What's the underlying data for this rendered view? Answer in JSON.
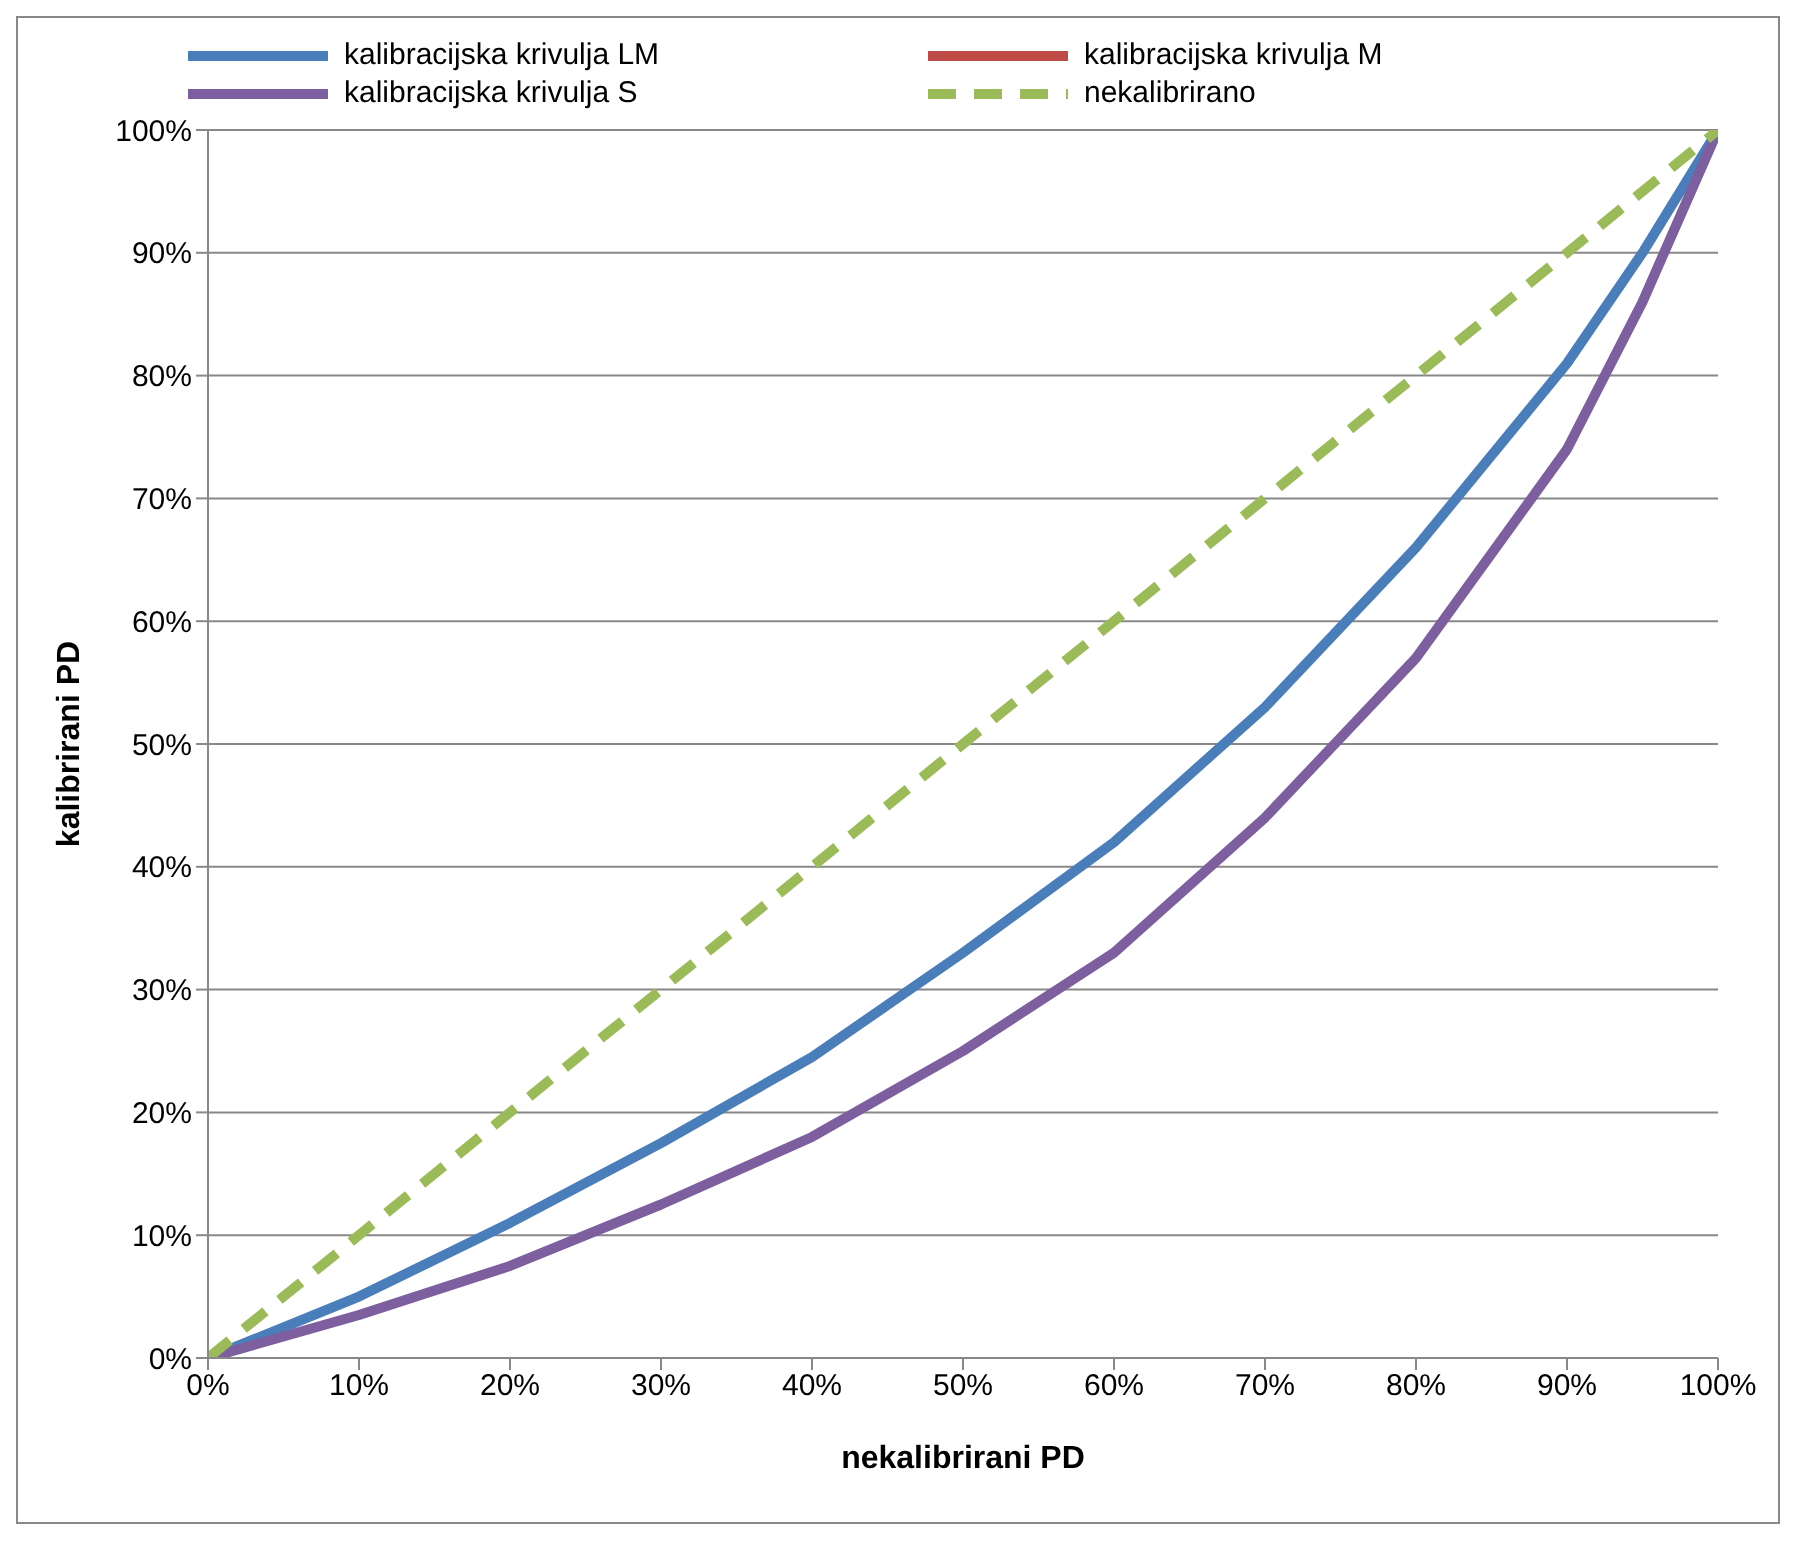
{
  "chart_data": {
    "type": "line",
    "xlabel": "nekalibrirani PD",
    "ylabel": "kalibrirani PD",
    "x": [
      0,
      10,
      20,
      30,
      40,
      50,
      60,
      70,
      80,
      90,
      95,
      100
    ],
    "series": [
      {
        "name": "kalibracijska krivulja LM",
        "color": "#4a7ebb",
        "values": [
          0,
          5,
          11,
          17.5,
          24.5,
          33,
          42,
          53,
          66,
          81,
          90,
          100
        ]
      },
      {
        "name": "kalibracijska krivulja M",
        "color": "#be4b48",
        "values": [
          null,
          null,
          null,
          null,
          null,
          null,
          null,
          null,
          null,
          null,
          null,
          null
        ]
      },
      {
        "name": "kalibracijska krivulja S",
        "color": "#7d5fa0",
        "values": [
          0,
          3.5,
          7.5,
          12.5,
          18,
          25,
          33,
          44,
          57,
          74,
          86,
          100
        ]
      },
      {
        "name": "nekalibrirano",
        "color": "#9bbb59",
        "line_style": "dashed",
        "values": [
          0,
          10,
          20,
          30,
          40,
          50,
          60,
          70,
          80,
          90,
          95,
          100
        ]
      }
    ],
    "xlim": [
      0,
      100
    ],
    "ylim": [
      0,
      100
    ],
    "xticks": [
      {
        "value": 0,
        "label": "0%"
      },
      {
        "value": 10,
        "label": "10%"
      },
      {
        "value": 20,
        "label": "20%"
      },
      {
        "value": 30,
        "label": "30%"
      },
      {
        "value": 40,
        "label": "40%"
      },
      {
        "value": 50,
        "label": "50%"
      },
      {
        "value": 60,
        "label": "60%"
      },
      {
        "value": 70,
        "label": "70%"
      },
      {
        "value": 80,
        "label": "80%"
      },
      {
        "value": 90,
        "label": "90%"
      },
      {
        "value": 100,
        "label": "100%"
      }
    ],
    "yticks": [
      {
        "value": 0,
        "label": "0%"
      },
      {
        "value": 10,
        "label": "10%"
      },
      {
        "value": 20,
        "label": "20%"
      },
      {
        "value": 30,
        "label": "30%"
      },
      {
        "value": 40,
        "label": "40%"
      },
      {
        "value": 50,
        "label": "50%"
      },
      {
        "value": 60,
        "label": "60%"
      },
      {
        "value": 70,
        "label": "70%"
      },
      {
        "value": 80,
        "label": "80%"
      },
      {
        "value": 90,
        "label": "90%"
      },
      {
        "value": 100,
        "label": "100%"
      }
    ],
    "grid": "y",
    "legend": "top",
    "marker": "none"
  }
}
